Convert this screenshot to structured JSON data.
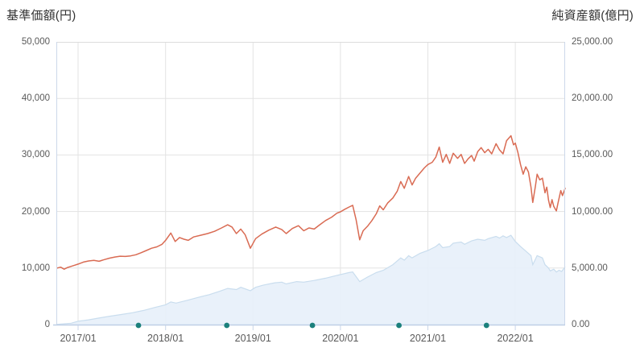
{
  "header": {
    "left_axis_title": "基準価額(円)",
    "right_axis_title": "純資産額(億円)"
  },
  "colors": {
    "price_line": "#d96b53",
    "assets_fill": "#e7f0f9",
    "assets_edge": "#c9ddee",
    "event_dot": "#1b807c",
    "grid": "#e3e3e3",
    "plot_border_top": "#dcdcdc",
    "plot_border_side": "#ccd8ea",
    "axis_line_bottom": "#bfcfe6",
    "tick_mark": "#c9d6e8",
    "label_text": "#595959",
    "title_text": "#333333"
  },
  "chart_data": {
    "type": "line",
    "subtype": "price-line-with-assets-area",
    "x_format": "decimal_year",
    "grid": true,
    "legend": false,
    "x_axis": {
      "range": [
        2016.751,
        2022.57
      ],
      "ticks": [
        {
          "t": 2017.0,
          "label": "2017/01"
        },
        {
          "t": 2018.0,
          "label": "2018/01"
        },
        {
          "t": 2019.0,
          "label": "2019/01"
        },
        {
          "t": 2020.0,
          "label": "2020/01"
        },
        {
          "t": 2021.0,
          "label": "2021/01"
        },
        {
          "t": 2022.0,
          "label": "2022/01"
        }
      ]
    },
    "left_axis": {
      "title": "基準価額(円)",
      "range": [
        0,
        50000
      ],
      "ticks": [
        {
          "v": 50000,
          "label": "50,000"
        },
        {
          "v": 40000,
          "label": "40,000"
        },
        {
          "v": 30000,
          "label": "30,000"
        },
        {
          "v": 20000,
          "label": "20,000"
        },
        {
          "v": 10000,
          "label": "10,000"
        },
        {
          "v": 0,
          "label": "0"
        }
      ]
    },
    "right_axis": {
      "title": "純資産額(億円)",
      "range": [
        0,
        25000
      ],
      "ticks": [
        {
          "v": 25000,
          "label": "25,000.00"
        },
        {
          "v": 20000,
          "label": "20,000.00"
        },
        {
          "v": 15000,
          "label": "15,000.00"
        },
        {
          "v": 10000,
          "label": "10,000.00"
        },
        {
          "v": 5000,
          "label": "5,000.00"
        },
        {
          "v": 0,
          "label": "0.00"
        }
      ]
    },
    "series": [
      {
        "name": "基準価額",
        "axis": "left",
        "type": "line",
        "color": "#d96b53",
        "points": [
          [
            2016.76,
            10000
          ],
          [
            2016.8,
            10150
          ],
          [
            2016.84,
            9800
          ],
          [
            2016.88,
            10100
          ],
          [
            2016.92,
            10300
          ],
          [
            2016.96,
            10500
          ],
          [
            2017.0,
            10700
          ],
          [
            2017.06,
            11050
          ],
          [
            2017.12,
            11250
          ],
          [
            2017.18,
            11350
          ],
          [
            2017.24,
            11200
          ],
          [
            2017.3,
            11500
          ],
          [
            2017.36,
            11750
          ],
          [
            2017.42,
            11950
          ],
          [
            2017.48,
            12100
          ],
          [
            2017.54,
            12050
          ],
          [
            2017.6,
            12150
          ],
          [
            2017.66,
            12350
          ],
          [
            2017.72,
            12700
          ],
          [
            2017.78,
            13100
          ],
          [
            2017.84,
            13500
          ],
          [
            2017.9,
            13750
          ],
          [
            2017.96,
            14200
          ],
          [
            2018.0,
            14900
          ],
          [
            2018.06,
            16200
          ],
          [
            2018.11,
            14700
          ],
          [
            2018.16,
            15400
          ],
          [
            2018.21,
            15100
          ],
          [
            2018.26,
            14900
          ],
          [
            2018.32,
            15500
          ],
          [
            2018.4,
            15800
          ],
          [
            2018.48,
            16100
          ],
          [
            2018.56,
            16500
          ],
          [
            2018.64,
            17100
          ],
          [
            2018.71,
            17650
          ],
          [
            2018.76,
            17250
          ],
          [
            2018.81,
            16100
          ],
          [
            2018.86,
            16900
          ],
          [
            2018.91,
            15900
          ],
          [
            2018.97,
            13500
          ],
          [
            2019.03,
            15200
          ],
          [
            2019.1,
            16000
          ],
          [
            2019.18,
            16700
          ],
          [
            2019.26,
            17250
          ],
          [
            2019.33,
            16800
          ],
          [
            2019.38,
            16100
          ],
          [
            2019.45,
            17000
          ],
          [
            2019.52,
            17500
          ],
          [
            2019.58,
            16600
          ],
          [
            2019.64,
            17100
          ],
          [
            2019.7,
            16900
          ],
          [
            2019.76,
            17600
          ],
          [
            2019.83,
            18400
          ],
          [
            2019.9,
            19000
          ],
          [
            2019.96,
            19700
          ],
          [
            2020.0,
            19950
          ],
          [
            2020.05,
            20400
          ],
          [
            2020.1,
            20800
          ],
          [
            2020.14,
            21100
          ],
          [
            2020.18,
            18500
          ],
          [
            2020.22,
            15000
          ],
          [
            2020.26,
            16600
          ],
          [
            2020.31,
            17400
          ],
          [
            2020.36,
            18400
          ],
          [
            2020.41,
            19600
          ],
          [
            2020.45,
            21000
          ],
          [
            2020.49,
            20300
          ],
          [
            2020.54,
            21500
          ],
          [
            2020.6,
            22400
          ],
          [
            2020.65,
            23600
          ],
          [
            2020.69,
            25300
          ],
          [
            2020.73,
            24100
          ],
          [
            2020.78,
            26200
          ],
          [
            2020.82,
            24700
          ],
          [
            2020.86,
            25900
          ],
          [
            2020.91,
            26800
          ],
          [
            2020.96,
            27700
          ],
          [
            2021.0,
            28300
          ],
          [
            2021.05,
            28700
          ],
          [
            2021.09,
            29600
          ],
          [
            2021.13,
            31400
          ],
          [
            2021.17,
            28700
          ],
          [
            2021.21,
            30100
          ],
          [
            2021.25,
            28500
          ],
          [
            2021.29,
            30300
          ],
          [
            2021.34,
            29400
          ],
          [
            2021.38,
            30100
          ],
          [
            2021.42,
            28500
          ],
          [
            2021.46,
            29300
          ],
          [
            2021.5,
            29900
          ],
          [
            2021.53,
            28900
          ],
          [
            2021.57,
            30600
          ],
          [
            2021.61,
            31300
          ],
          [
            2021.65,
            30400
          ],
          [
            2021.69,
            31000
          ],
          [
            2021.73,
            30200
          ],
          [
            2021.78,
            32000
          ],
          [
            2021.82,
            30900
          ],
          [
            2021.86,
            30200
          ],
          [
            2021.9,
            32500
          ],
          [
            2021.95,
            33400
          ],
          [
            2021.98,
            31800
          ],
          [
            2022.0,
            32100
          ],
          [
            2022.03,
            30400
          ],
          [
            2022.06,
            28300
          ],
          [
            2022.09,
            26600
          ],
          [
            2022.12,
            27900
          ],
          [
            2022.15,
            27000
          ],
          [
            2022.18,
            24300
          ],
          [
            2022.2,
            21600
          ],
          [
            2022.23,
            24500
          ],
          [
            2022.25,
            26600
          ],
          [
            2022.28,
            25600
          ],
          [
            2022.31,
            25900
          ],
          [
            2022.34,
            23300
          ],
          [
            2022.36,
            24300
          ],
          [
            2022.38,
            22000
          ],
          [
            2022.4,
            20700
          ],
          [
            2022.42,
            22100
          ],
          [
            2022.44,
            20900
          ],
          [
            2022.47,
            20100
          ],
          [
            2022.49,
            21600
          ],
          [
            2022.52,
            23700
          ],
          [
            2022.54,
            22800
          ],
          [
            2022.57,
            24100
          ]
        ]
      },
      {
        "name": "純資産額",
        "axis": "right",
        "type": "area",
        "color": "#e7f0f9",
        "edge_color": "#c9ddee",
        "points": [
          [
            2016.76,
            20
          ],
          [
            2016.92,
            120
          ],
          [
            2017.0,
            300
          ],
          [
            2017.12,
            420
          ],
          [
            2017.25,
            600
          ],
          [
            2017.37,
            750
          ],
          [
            2017.5,
            900
          ],
          [
            2017.62,
            1050
          ],
          [
            2017.75,
            1250
          ],
          [
            2017.87,
            1500
          ],
          [
            2018.0,
            1750
          ],
          [
            2018.06,
            2000
          ],
          [
            2018.12,
            1900
          ],
          [
            2018.25,
            2150
          ],
          [
            2018.37,
            2400
          ],
          [
            2018.5,
            2650
          ],
          [
            2018.62,
            2950
          ],
          [
            2018.71,
            3200
          ],
          [
            2018.81,
            3100
          ],
          [
            2018.86,
            3300
          ],
          [
            2018.97,
            3000
          ],
          [
            2019.03,
            3300
          ],
          [
            2019.12,
            3500
          ],
          [
            2019.25,
            3700
          ],
          [
            2019.33,
            3750
          ],
          [
            2019.38,
            3600
          ],
          [
            2019.5,
            3800
          ],
          [
            2019.58,
            3750
          ],
          [
            2019.7,
            3900
          ],
          [
            2019.83,
            4100
          ],
          [
            2019.96,
            4350
          ],
          [
            2020.1,
            4600
          ],
          [
            2020.14,
            4650
          ],
          [
            2020.22,
            3800
          ],
          [
            2020.31,
            4200
          ],
          [
            2020.41,
            4600
          ],
          [
            2020.49,
            4800
          ],
          [
            2020.6,
            5300
          ],
          [
            2020.69,
            5900
          ],
          [
            2020.73,
            5700
          ],
          [
            2020.78,
            6100
          ],
          [
            2020.82,
            5900
          ],
          [
            2020.91,
            6300
          ],
          [
            2021.0,
            6550
          ],
          [
            2021.09,
            6900
          ],
          [
            2021.13,
            7150
          ],
          [
            2021.17,
            6800
          ],
          [
            2021.25,
            6900
          ],
          [
            2021.29,
            7200
          ],
          [
            2021.38,
            7300
          ],
          [
            2021.42,
            7100
          ],
          [
            2021.5,
            7400
          ],
          [
            2021.57,
            7550
          ],
          [
            2021.65,
            7450
          ],
          [
            2021.69,
            7600
          ],
          [
            2021.78,
            7800
          ],
          [
            2021.82,
            7650
          ],
          [
            2021.86,
            7850
          ],
          [
            2021.9,
            7700
          ],
          [
            2021.95,
            7900
          ],
          [
            2022.0,
            7350
          ],
          [
            2022.06,
            6900
          ],
          [
            2022.12,
            6500
          ],
          [
            2022.18,
            6100
          ],
          [
            2022.2,
            5300
          ],
          [
            2022.25,
            6100
          ],
          [
            2022.31,
            5900
          ],
          [
            2022.34,
            5300
          ],
          [
            2022.38,
            5000
          ],
          [
            2022.4,
            4750
          ],
          [
            2022.44,
            4900
          ],
          [
            2022.47,
            4650
          ],
          [
            2022.5,
            4800
          ],
          [
            2022.53,
            4700
          ],
          [
            2022.57,
            5100
          ]
        ]
      }
    ],
    "event_markers": {
      "color": "#1b807c",
      "dates": [
        2017.69,
        2018.7,
        2019.68,
        2020.67,
        2021.67
      ]
    }
  }
}
